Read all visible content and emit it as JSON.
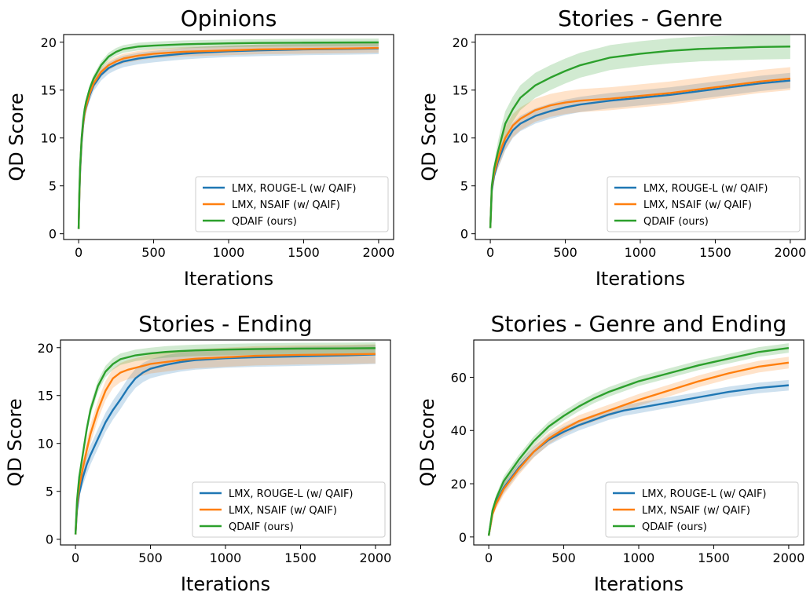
{
  "colors": {
    "blue": "#1f77b4",
    "orange": "#ff7f0e",
    "green": "#2ca02c"
  },
  "chart_data": [
    {
      "type": "line",
      "title": "Opinions",
      "xlabel": "Iterations",
      "ylabel": "QD Score",
      "xlim": [
        -100,
        2100
      ],
      "ylim": [
        -0.6,
        20.8
      ],
      "xticks": [
        0,
        500,
        1000,
        1500,
        2000
      ],
      "yticks": [
        0,
        5,
        10,
        15,
        20
      ],
      "xtick_labels": [
        "0",
        "500",
        "1000",
        "1500",
        "2000"
      ],
      "ytick_labels": [
        "0",
        "5",
        "10",
        "15",
        "20"
      ],
      "legend": {
        "position": "lower-right"
      },
      "series": [
        {
          "name": "LMX, ROUGE-L (w/ QAIF)",
          "color": "#1f77b4",
          "band": 0.6,
          "x": [
            0,
            5,
            10,
            20,
            30,
            40,
            50,
            75,
            100,
            150,
            200,
            250,
            300,
            400,
            500,
            600,
            700,
            800,
            1000,
            1200,
            1500,
            1800,
            2000
          ],
          "y": [
            0.5,
            4.0,
            6.5,
            9.5,
            11.3,
            12.5,
            13.2,
            14.5,
            15.5,
            16.6,
            17.3,
            17.7,
            18.0,
            18.3,
            18.5,
            18.65,
            18.8,
            18.9,
            19.05,
            19.15,
            19.25,
            19.3,
            19.35
          ]
        },
        {
          "name": "LMX, NSAIF (w/ QAIF)",
          "color": "#ff7f0e",
          "band": 0.5,
          "x": [
            0,
            5,
            10,
            20,
            30,
            40,
            50,
            75,
            100,
            150,
            200,
            250,
            300,
            400,
            500,
            600,
            700,
            800,
            1000,
            1200,
            1500,
            1800,
            2000
          ],
          "y": [
            0.5,
            4.2,
            6.8,
            9.8,
            11.5,
            12.6,
            13.3,
            14.7,
            15.7,
            16.9,
            17.6,
            18.0,
            18.3,
            18.6,
            18.8,
            18.9,
            19.0,
            19.05,
            19.15,
            19.25,
            19.3,
            19.35,
            19.4
          ]
        },
        {
          "name": "QDAIF (ours)",
          "color": "#2ca02c",
          "band": 0.4,
          "x": [
            0,
            5,
            10,
            20,
            30,
            40,
            50,
            75,
            100,
            150,
            200,
            250,
            300,
            400,
            500,
            600,
            700,
            800,
            1000,
            1200,
            1500,
            1800,
            2000
          ],
          "y": [
            0.5,
            4.5,
            7.0,
            10.0,
            11.8,
            13.0,
            13.8,
            15.2,
            16.2,
            17.6,
            18.5,
            19.0,
            19.3,
            19.55,
            19.65,
            19.72,
            19.78,
            19.82,
            19.88,
            19.92,
            19.95,
            19.97,
            19.98
          ]
        }
      ]
    },
    {
      "type": "line",
      "title": "Stories - Genre",
      "xlabel": "Iterations",
      "ylabel": "QD Score",
      "xlim": [
        -100,
        2100
      ],
      "ylim": [
        -0.6,
        20.8
      ],
      "xticks": [
        0,
        500,
        1000,
        1500,
        2000
      ],
      "yticks": [
        0,
        5,
        10,
        15,
        20
      ],
      "xtick_labels": [
        "0",
        "500",
        "1000",
        "1500",
        "2000"
      ],
      "ytick_labels": [
        "0",
        "5",
        "10",
        "15",
        "20"
      ],
      "legend": {
        "position": "lower-right"
      },
      "series": [
        {
          "name": "LMX, ROUGE-L (w/ QAIF)",
          "color": "#1f77b4",
          "band": 0.8,
          "x": [
            0,
            10,
            25,
            50,
            75,
            100,
            150,
            200,
            300,
            400,
            500,
            600,
            800,
            1000,
            1200,
            1400,
            1600,
            1800,
            2000
          ],
          "y": [
            0.6,
            4.5,
            6.0,
            7.5,
            8.5,
            9.5,
            10.8,
            11.5,
            12.3,
            12.8,
            13.2,
            13.5,
            13.9,
            14.2,
            14.5,
            14.9,
            15.3,
            15.7,
            16.0
          ]
        },
        {
          "name": "LMX, NSAIF (w/ QAIF)",
          "color": "#ff7f0e",
          "band": 1.2,
          "x": [
            0,
            10,
            25,
            50,
            75,
            100,
            150,
            200,
            300,
            400,
            500,
            600,
            800,
            1000,
            1200,
            1400,
            1600,
            1800,
            2000
          ],
          "y": [
            0.6,
            4.8,
            6.3,
            7.8,
            9.0,
            10.0,
            11.3,
            12.0,
            12.9,
            13.4,
            13.7,
            13.9,
            14.1,
            14.4,
            14.7,
            15.1,
            15.5,
            15.9,
            16.2
          ]
        },
        {
          "name": "QDAIF (ours)",
          "color": "#2ca02c",
          "band": 1.3,
          "x": [
            0,
            10,
            25,
            50,
            75,
            100,
            150,
            200,
            300,
            400,
            500,
            600,
            700,
            800,
            1000,
            1200,
            1400,
            1600,
            1800,
            2000
          ],
          "y": [
            0.6,
            5.0,
            6.8,
            8.5,
            10.0,
            11.5,
            13.0,
            14.2,
            15.5,
            16.3,
            17.0,
            17.6,
            18.0,
            18.4,
            18.8,
            19.1,
            19.3,
            19.4,
            19.5,
            19.55
          ]
        }
      ]
    },
    {
      "type": "line",
      "title": "Stories - Ending",
      "xlabel": "Iterations",
      "ylabel": "QD Score",
      "xlim": [
        -100,
        2100
      ],
      "ylim": [
        -0.6,
        20.8
      ],
      "xticks": [
        0,
        500,
        1000,
        1500,
        2000
      ],
      "yticks": [
        0,
        5,
        10,
        15,
        20
      ],
      "xtick_labels": [
        "0",
        "500",
        "1000",
        "1500",
        "2000"
      ],
      "ytick_labels": [
        "0",
        "5",
        "10",
        "15",
        "20"
      ],
      "legend": {
        "position": "lower-right"
      },
      "series": [
        {
          "name": "LMX, ROUGE-L (w/ QAIF)",
          "color": "#1f77b4",
          "band": 1.0,
          "x": [
            0,
            10,
            25,
            50,
            75,
            100,
            150,
            200,
            250,
            300,
            350,
            400,
            450,
            500,
            600,
            700,
            800,
            1000,
            1200,
            1500,
            1800,
            2000
          ],
          "y": [
            0.5,
            3.0,
            4.8,
            6.5,
            7.8,
            8.8,
            10.5,
            12.2,
            13.5,
            14.6,
            15.8,
            16.8,
            17.4,
            17.8,
            18.2,
            18.5,
            18.7,
            18.9,
            19.0,
            19.1,
            19.2,
            19.3
          ]
        },
        {
          "name": "LMX, NSAIF (w/ QAIF)",
          "color": "#ff7f0e",
          "band": 1.0,
          "x": [
            0,
            10,
            25,
            50,
            75,
            100,
            150,
            200,
            250,
            300,
            350,
            400,
            450,
            500,
            600,
            700,
            800,
            1000,
            1200,
            1500,
            1800,
            2000
          ],
          "y": [
            0.5,
            3.5,
            5.5,
            7.5,
            9.3,
            11.0,
            13.5,
            15.5,
            16.8,
            17.4,
            17.7,
            17.9,
            18.1,
            18.3,
            18.5,
            18.7,
            18.85,
            19.0,
            19.15,
            19.25,
            19.3,
            19.35
          ]
        },
        {
          "name": "QDAIF (ours)",
          "color": "#2ca02c",
          "band": 0.6,
          "x": [
            0,
            10,
            25,
            50,
            75,
            100,
            150,
            200,
            250,
            300,
            400,
            500,
            600,
            700,
            800,
            1000,
            1200,
            1500,
            1800,
            2000
          ],
          "y": [
            0.5,
            4.0,
            6.5,
            9.0,
            11.5,
            13.5,
            16.0,
            17.5,
            18.3,
            18.8,
            19.2,
            19.4,
            19.55,
            19.65,
            19.72,
            19.8,
            19.85,
            19.9,
            19.92,
            19.95
          ]
        }
      ]
    },
    {
      "type": "line",
      "title": "Stories - Genre and Ending",
      "xlabel": "Iterations",
      "ylabel": "QD Score",
      "xlim": [
        -100,
        2100
      ],
      "ylim": [
        -3,
        74
      ],
      "xticks": [
        0,
        500,
        1000,
        1500,
        2000
      ],
      "yticks": [
        0,
        20,
        40,
        60
      ],
      "xtick_labels": [
        "0",
        "500",
        "1000",
        "1500",
        "2000"
      ],
      "ytick_labels": [
        "0",
        "20",
        "40",
        "60"
      ],
      "legend": {
        "position": "lower-right"
      },
      "series": [
        {
          "name": "LMX, ROUGE-L (w/ QAIF)",
          "color": "#1f77b4",
          "band": 2.0,
          "x": [
            0,
            25,
            50,
            100,
            200,
            300,
            400,
            500,
            600,
            700,
            800,
            900,
            1000,
            1200,
            1400,
            1600,
            1800,
            2000
          ],
          "y": [
            0.5,
            9.0,
            13.0,
            18.5,
            26.0,
            32.0,
            36.5,
            39.5,
            42.0,
            44.0,
            46.0,
            47.5,
            48.5,
            50.5,
            52.5,
            54.5,
            56.0,
            57.0
          ]
        },
        {
          "name": "LMX, NSAIF (w/ QAIF)",
          "color": "#ff7f0e",
          "band": 2.2,
          "x": [
            0,
            25,
            50,
            100,
            200,
            300,
            400,
            500,
            600,
            700,
            800,
            900,
            1000,
            1200,
            1400,
            1600,
            1800,
            2000
          ],
          "y": [
            0.5,
            8.5,
            12.5,
            18.0,
            25.5,
            32.0,
            37.0,
            40.5,
            43.5,
            45.5,
            47.5,
            49.5,
            51.5,
            55.0,
            58.5,
            61.5,
            64.0,
            65.5
          ]
        },
        {
          "name": "QDAIF (ours)",
          "color": "#2ca02c",
          "band": 1.8,
          "x": [
            0,
            25,
            50,
            100,
            200,
            300,
            400,
            500,
            600,
            700,
            800,
            900,
            1000,
            1200,
            1400,
            1600,
            1800,
            2000
          ],
          "y": [
            0.5,
            10.0,
            14.5,
            21.0,
            29.0,
            36.0,
            41.5,
            45.5,
            49.0,
            52.0,
            54.5,
            56.5,
            58.5,
            61.5,
            64.5,
            67.0,
            69.5,
            71.0
          ]
        }
      ]
    }
  ]
}
